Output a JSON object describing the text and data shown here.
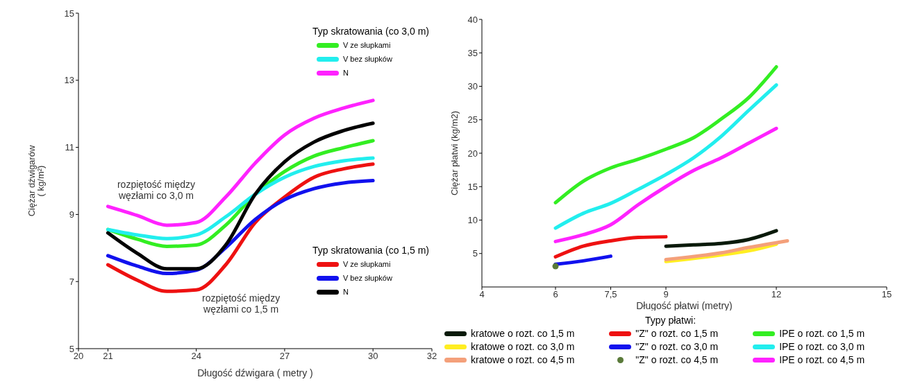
{
  "chart_data": [
    {
      "type": "line",
      "xlabel": "Długość dźwigara ( metry )",
      "ylabel": "Ciężar dźwigarów ( kg/m²)",
      "xlim": [
        20,
        32
      ],
      "xticks": [
        20,
        21,
        24,
        27,
        30,
        32
      ],
      "ylim": [
        5,
        15
      ],
      "yticks": [
        5,
        7,
        9,
        11,
        13,
        15
      ],
      "legend": "right",
      "marker": "none",
      "line_style": "solid",
      "annotations": [
        "Typ skratowania (co 3,0 m)",
        "Typ skratowania (co 1,5 m)",
        "rozpiętość między węzłami co 3,0 m",
        "rozpiętość między węzłami co 1,5 m"
      ],
      "x": [
        21,
        22,
        23,
        24,
        25,
        26,
        27,
        28,
        29,
        30
      ],
      "series": [
        {
          "name": "V ze słupkami",
          "color": "#33ee22",
          "values": [
            8.55,
            8.26,
            8.05,
            8.09,
            8.68,
            9.6,
            10.28,
            10.74,
            10.99,
            11.2
          ]
        },
        {
          "name": "V bez słupków",
          "color": "#22eeee",
          "values": [
            8.55,
            8.39,
            8.28,
            8.39,
            8.93,
            9.6,
            10.11,
            10.43,
            10.6,
            10.68
          ]
        },
        {
          "name": "N",
          "color": "#ff22ff",
          "values": [
            9.24,
            8.97,
            8.68,
            8.76,
            9.52,
            10.53,
            11.37,
            11.87,
            12.17,
            12.4
          ]
        },
        {
          "name": "V ze słupkami",
          "color": "#ee1111",
          "values": [
            7.5,
            7.04,
            6.71,
            6.75,
            7.5,
            8.76,
            9.52,
            10.11,
            10.36,
            10.5
          ]
        },
        {
          "name": "V bez słupków",
          "color": "#1111ee",
          "values": [
            7.77,
            7.46,
            7.24,
            7.34,
            8.01,
            8.85,
            9.44,
            9.77,
            9.94,
            10.01
          ]
        },
        {
          "name": "N",
          "color": "#000000",
          "values": [
            8.45,
            7.84,
            7.38,
            7.38,
            8.09,
            9.6,
            10.57,
            11.16,
            11.5,
            11.72
          ]
        }
      ]
    },
    {
      "type": "line",
      "xlabel": "Długość płatwi (metry)",
      "ylabel": "Ciężar płatwi (kg/m2)",
      "legend_title": "Typy płatwi:",
      "xlim": [
        4,
        15
      ],
      "xticks": [
        4,
        6,
        {
          "value": 7.5,
          "label": "7,5"
        },
        9,
        12,
        15
      ],
      "ylim": [
        0,
        40
      ],
      "yticks": [
        5,
        10,
        15,
        20,
        25,
        30,
        35,
        40
      ],
      "legend": "bottom",
      "line_style": "solid",
      "series": [
        {
          "name": "kratowe o rozt. co 1,5 m",
          "color": "#0a1a0a",
          "x": [
            9,
            9.75,
            10.5,
            11.25,
            12
          ],
          "values": [
            6.1,
            6.3,
            6.5,
            7.1,
            8.4
          ]
        },
        {
          "name": "kratowe o rozt. co 3,0 m",
          "color": "#ffee22",
          "x": [
            9,
            10.5,
            11.25,
            12
          ],
          "values": [
            3.8,
            4.8,
            5.4,
            6.4
          ]
        },
        {
          "name": "kratowe o rozt. co 4,5 m",
          "color": "#f4a07a",
          "x": [
            9,
            10.5,
            11.25,
            12.3
          ],
          "values": [
            4.1,
            5.1,
            5.9,
            6.9
          ]
        },
        {
          "name": "\"Z\" o rozt. co 1,5 m",
          "color": "#ee1111",
          "x": [
            6,
            6.75,
            7.5,
            8.25,
            9
          ],
          "values": [
            4.5,
            6.1,
            6.9,
            7.4,
            7.5
          ]
        },
        {
          "name": "\"Z\" o rozt. co 3,0 m",
          "color": "#1111ee",
          "x": [
            6,
            6.75,
            7.5
          ],
          "values": [
            3.4,
            3.9,
            4.6
          ]
        },
        {
          "name": "\"Z\" o rozt. co 4,5 m",
          "color": "#5a7a3a",
          "type": "scatter",
          "x": [
            6
          ],
          "values": [
            3.1
          ]
        },
        {
          "name": "IPE o rozt. co 1,5 m",
          "color": "#33ee22",
          "x": [
            6,
            6.75,
            7.5,
            8.25,
            9,
            9.75,
            10.5,
            11.25,
            12
          ],
          "values": [
            12.6,
            15.8,
            17.8,
            19.1,
            20.6,
            22.3,
            25.1,
            28.3,
            32.9
          ]
        },
        {
          "name": "IPE o rozt. co 3,0 m",
          "color": "#22eeee",
          "x": [
            6,
            6.75,
            7.5,
            8.25,
            9,
            9.75,
            10.5,
            11.25,
            12
          ],
          "values": [
            8.8,
            11.0,
            12.5,
            14.6,
            16.8,
            19.3,
            22.5,
            26.4,
            30.2
          ]
        },
        {
          "name": "IPE o rozt. co 4,5 m",
          "color": "#ff22ff",
          "x": [
            6,
            6.75,
            7.5,
            8.25,
            9,
            9.75,
            10.5,
            11.25,
            12
          ],
          "values": [
            6.8,
            7.8,
            9.3,
            12.3,
            15.0,
            17.4,
            19.3,
            21.5,
            23.7
          ]
        }
      ]
    }
  ]
}
